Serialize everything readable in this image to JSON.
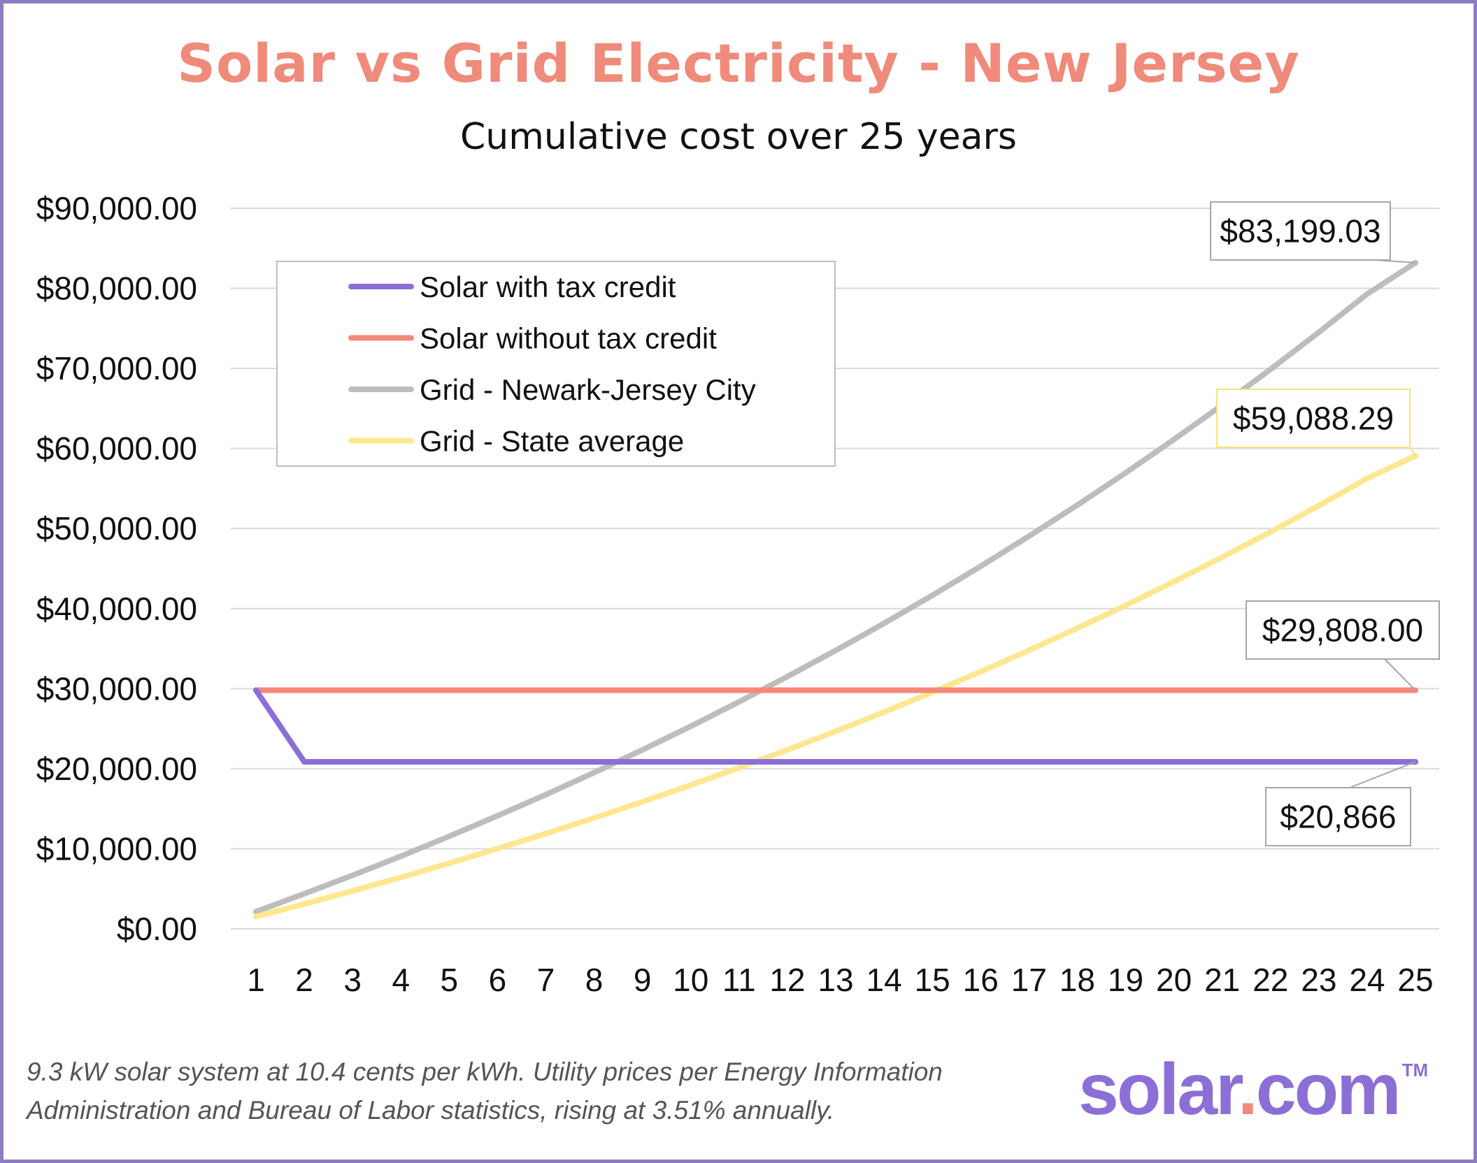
{
  "colors": {
    "border": "#8e7cc3",
    "title": "#f08a7a",
    "solar_with_credit": "#8c6fd6",
    "solar_without_credit": "#f4897a",
    "grid_newark": "#bdbdbd",
    "grid_state": "#fde791",
    "logo_main": "#8c6fd6",
    "logo_dot": "#f4897a"
  },
  "footnote": {
    "line1": "9.3 kW solar system at 10.4 cents per kWh. Utility prices per Energy Information",
    "line2": "Administration and Bureau of Labor statistics, rising at 3.51% annually."
  },
  "logo": {
    "left": "solar",
    "dot": ".",
    "right": "com",
    "tm": "TM"
  },
  "chart_data": {
    "type": "line",
    "title": "Solar vs Grid Electricity - New Jersey",
    "subtitle": "Cumulative cost over 25 years",
    "xlabel": "",
    "ylabel": "",
    "categories": [
      "1",
      "2",
      "3",
      "4",
      "5",
      "6",
      "7",
      "8",
      "9",
      "10",
      "11",
      "12",
      "13",
      "14",
      "15",
      "16",
      "17",
      "18",
      "19",
      "20",
      "21",
      "22",
      "23",
      "24",
      "25"
    ],
    "y_ticks": [
      "$0.00",
      "$10,000.00",
      "$20,000.00",
      "$30,000.00",
      "$40,000.00",
      "$50,000.00",
      "$60,000.00",
      "$70,000.00",
      "$80,000.00",
      "$90,000.00"
    ],
    "ylim": [
      0,
      90000
    ],
    "grid": true,
    "legend_position": "top-left",
    "series": [
      {
        "name": "Solar with tax credit",
        "color": "#8c6fd6",
        "values": [
          29808,
          20866,
          20866,
          20866,
          20866,
          20866,
          20866,
          20866,
          20866,
          20866,
          20866,
          20866,
          20866,
          20866,
          20866,
          20866,
          20866,
          20866,
          20866,
          20866,
          20866,
          20866,
          20866,
          20866,
          20866
        ]
      },
      {
        "name": "Solar without tax credit",
        "color": "#f4897a",
        "values": [
          29808,
          29808,
          29808,
          29808,
          29808,
          29808,
          29808,
          29808,
          29808,
          29808,
          29808,
          29808,
          29808,
          29808,
          29808,
          29808,
          29808,
          29808,
          29808,
          29808,
          29808,
          29808,
          29808,
          29808,
          29808
        ]
      },
      {
        "name": "Grid - Newark-Jersey City",
        "color": "#bdbdbd",
        "values": [
          2150,
          4380,
          6690,
          9080,
          11560,
          14120,
          16770,
          19520,
          22360,
          25310,
          28350,
          31510,
          34770,
          38160,
          41660,
          45290,
          49040,
          52930,
          56950,
          61120,
          65430,
          69890,
          74510,
          79290,
          83199.03
        ]
      },
      {
        "name": "Grid - State average",
        "color": "#fde791",
        "values": [
          1530,
          3110,
          4750,
          6440,
          8200,
          10020,
          11900,
          13850,
          15870,
          17960,
          20120,
          22360,
          24680,
          27080,
          29560,
          32130,
          34790,
          37550,
          40400,
          43360,
          46420,
          49590,
          52860,
          56260,
          59088.29
        ]
      }
    ],
    "annotations": [
      {
        "text": "$83,199.03",
        "series": 2,
        "point": 25
      },
      {
        "text": "$59,088.29",
        "series": 3,
        "point": 25
      },
      {
        "text": "$29,808.00",
        "series": 1,
        "point": 25
      },
      {
        "text": "$20,866",
        "series": 0,
        "point": 25
      }
    ]
  }
}
